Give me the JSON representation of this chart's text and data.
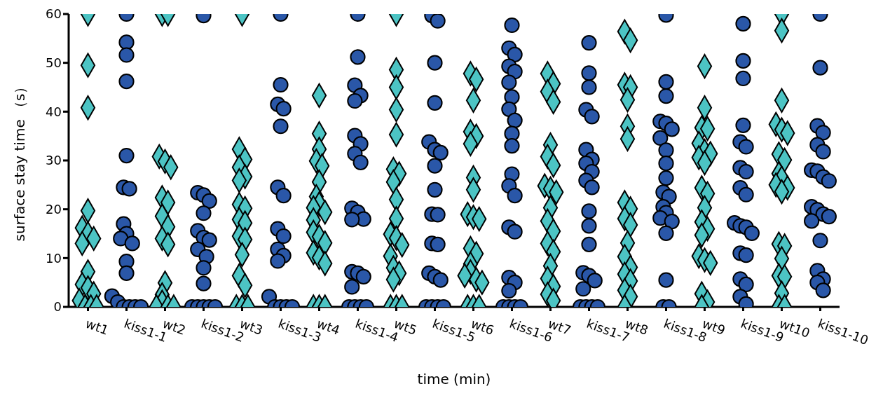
{
  "chart_data": {
    "type": "scatter",
    "xlabel": "time (min)",
    "ylabel": "surface stay time （s）",
    "categories": [
      "wt1",
      "kiss1-1",
      "wt2",
      "kiss1-2",
      "wt3",
      "kiss1-3",
      "wt4",
      "kiss1-4",
      "wt5",
      "kiss1-5",
      "wt6",
      "kiss1-6",
      "wt7",
      "kiss1-7",
      "wt8",
      "kiss1-8",
      "wt9",
      "kiss1-9",
      "wt10",
      "kiss1-10"
    ],
    "ylim": [
      0,
      60
    ],
    "yticks": [
      0,
      10,
      20,
      30,
      40,
      50,
      60
    ],
    "grid": false,
    "series": [
      {
        "color": "#4cc4c4",
        "marker": "diamond",
        "x": [
          "wt1",
          "wt1",
          "wt1",
          "wt1",
          "wt1",
          "wt1",
          "wt1",
          "wt1",
          "wt1",
          "wt1",
          "wt1",
          "wt1",
          "wt1",
          "wt1",
          "wt1",
          "wt1",
          "wt2",
          "wt2",
          "wt2",
          "wt2",
          "wt2",
          "wt2",
          "wt2",
          "wt2",
          "wt2",
          "wt2",
          "wt2",
          "wt2",
          "wt2",
          "wt2",
          "wt2",
          "wt2",
          "wt2",
          "wt3",
          "wt3",
          "wt3",
          "wt3",
          "wt3",
          "wt3",
          "wt3",
          "wt3",
          "wt3",
          "wt3",
          "wt3",
          "wt3",
          "wt3",
          "wt3",
          "wt3",
          "wt3",
          "wt3",
          "wt3",
          "wt4",
          "wt4",
          "wt4",
          "wt4",
          "wt4",
          "wt4",
          "wt4",
          "wt4",
          "wt4",
          "wt4",
          "wt4",
          "wt4",
          "wt4",
          "wt4",
          "wt4",
          "wt4",
          "wt4",
          "wt4",
          "wt4",
          "wt4",
          "wt5",
          "wt5",
          "wt5",
          "wt5",
          "wt5",
          "wt5",
          "wt5",
          "wt5",
          "wt5",
          "wt5",
          "wt5",
          "wt5",
          "wt5",
          "wt5",
          "wt5",
          "wt5",
          "wt5",
          "wt5",
          "wt5",
          "wt5",
          "wt6",
          "wt6",
          "wt6",
          "wt6",
          "wt6",
          "wt6",
          "wt6",
          "wt6",
          "wt6",
          "wt6",
          "wt6",
          "wt6",
          "wt6",
          "wt6",
          "wt6",
          "wt6",
          "wt6",
          "wt6",
          "wt6",
          "wt6",
          "wt6",
          "wt7",
          "wt7",
          "wt7",
          "wt7",
          "wt7",
          "wt7",
          "wt7",
          "wt7",
          "wt7",
          "wt7",
          "wt7",
          "wt7",
          "wt7",
          "wt7",
          "wt7",
          "wt7",
          "wt7",
          "wt7",
          "wt7",
          "wt7",
          "wt8",
          "wt8",
          "wt8",
          "wt8",
          "wt8",
          "wt8",
          "wt8",
          "wt8",
          "wt8",
          "wt8",
          "wt8",
          "wt8",
          "wt8",
          "wt8",
          "wt8",
          "wt8",
          "wt8",
          "wt8",
          "wt8",
          "wt9",
          "wt9",
          "wt9",
          "wt9",
          "wt9",
          "wt9",
          "wt9",
          "wt9",
          "wt9",
          "wt9",
          "wt9",
          "wt9",
          "wt9",
          "wt9",
          "wt9",
          "wt9",
          "wt9",
          "wt9",
          "wt9",
          "wt9",
          "wt9",
          "wt10",
          "wt10",
          "wt10",
          "wt10",
          "wt10",
          "wt10",
          "wt10",
          "wt10",
          "wt10",
          "wt10",
          "wt10",
          "wt10",
          "wt10",
          "wt10",
          "wt10",
          "wt10",
          "wt10",
          "wt10",
          "wt10",
          "wt10",
          "wt10"
        ],
        "values": [
          60,
          49.5,
          40.8,
          19.7,
          16.2,
          15,
          14,
          13,
          7.2,
          4.6,
          3.9,
          2.7,
          1.3,
          0,
          0,
          0,
          60,
          60,
          30.8,
          29.8,
          28.6,
          22.4,
          21.4,
          18.6,
          16.4,
          14,
          12.8,
          4.9,
          2.5,
          1,
          0,
          0,
          0,
          60,
          32.3,
          30.2,
          28.6,
          26.7,
          25.9,
          21,
          20.2,
          17.9,
          17.2,
          14.5,
          13.8,
          10.7,
          6.4,
          4.4,
          0,
          0,
          0,
          43.3,
          35.5,
          32.3,
          29.9,
          28.9,
          25.6,
          22.6,
          21.1,
          20.3,
          19.4,
          17.8,
          15.3,
          14.4,
          13.1,
          11.1,
          10.1,
          8.9,
          0,
          0,
          0,
          60,
          48.6,
          45,
          40.4,
          35.3,
          28.2,
          27.3,
          25.6,
          22,
          18.1,
          14.9,
          14.1,
          12.7,
          10.4,
          8,
          6.9,
          5.6,
          0,
          0,
          0,
          47.8,
          46.6,
          42.3,
          35.9,
          35,
          33.4,
          26.5,
          24,
          19,
          18.4,
          18,
          12,
          10.9,
          8.8,
          7.2,
          6.4,
          5.6,
          5,
          0,
          0,
          0,
          47.8,
          45.7,
          44.1,
          42,
          33.2,
          30.8,
          29,
          24.8,
          24.2,
          23.5,
          20.3,
          17.6,
          15.5,
          13,
          11.3,
          8.4,
          5.8,
          4.2,
          2.6,
          1.3,
          56.4,
          54.6,
          45.5,
          45,
          42.4,
          37,
          34.4,
          21.4,
          20.1,
          18.1,
          16.8,
          13.1,
          10.3,
          8.1,
          6.7,
          5.3,
          3.4,
          2.1,
          0,
          49.3,
          40.8,
          36.7,
          36.5,
          33.5,
          31.9,
          31.4,
          30.6,
          29.5,
          24.4,
          23.2,
          20.3,
          17.4,
          16,
          14.7,
          10.4,
          9.6,
          9,
          2.7,
          1,
          0,
          60,
          56.6,
          42.3,
          37.4,
          36.3,
          35.6,
          31.3,
          30.1,
          27.3,
          26.4,
          25,
          24.4,
          23.6,
          12.9,
          12.5,
          9.9,
          6.4,
          6.2,
          2.8,
          0,
          0
        ]
      },
      {
        "color": "#2a57a8",
        "marker": "circle",
        "x": [
          "kiss1-1",
          "kiss1-1",
          "kiss1-1",
          "kiss1-1",
          "kiss1-1",
          "kiss1-1",
          "kiss1-1",
          "kiss1-1",
          "kiss1-1",
          "kiss1-1",
          "kiss1-1",
          "kiss1-1",
          "kiss1-1",
          "kiss1-1",
          "kiss1-1",
          "kiss1-1",
          "kiss1-1",
          "kiss1-1",
          "kiss1-1",
          "kiss1-2",
          "kiss1-2",
          "kiss1-2",
          "kiss1-2",
          "kiss1-2",
          "kiss1-2",
          "kiss1-2",
          "kiss1-2",
          "kiss1-2",
          "kiss1-2",
          "kiss1-2",
          "kiss1-2",
          "kiss1-2",
          "kiss1-2",
          "kiss1-2",
          "kiss1-2",
          "kiss1-2",
          "kiss1-3",
          "kiss1-3",
          "kiss1-3",
          "kiss1-3",
          "kiss1-3",
          "kiss1-3",
          "kiss1-3",
          "kiss1-3",
          "kiss1-3",
          "kiss1-3",
          "kiss1-3",
          "kiss1-3",
          "kiss1-3",
          "kiss1-3",
          "kiss1-3",
          "kiss1-3",
          "kiss1-3",
          "kiss1-4",
          "kiss1-4",
          "kiss1-4",
          "kiss1-4",
          "kiss1-4",
          "kiss1-4",
          "kiss1-4",
          "kiss1-4",
          "kiss1-4",
          "kiss1-4",
          "kiss1-4",
          "kiss1-4",
          "kiss1-4",
          "kiss1-4",
          "kiss1-4",
          "kiss1-4",
          "kiss1-4",
          "kiss1-4",
          "kiss1-4",
          "kiss1-4",
          "kiss1-4",
          "kiss1-5",
          "kiss1-5",
          "kiss1-5",
          "kiss1-5",
          "kiss1-5",
          "kiss1-5",
          "kiss1-5",
          "kiss1-5",
          "kiss1-5",
          "kiss1-5",
          "kiss1-5",
          "kiss1-5",
          "kiss1-5",
          "kiss1-5",
          "kiss1-5",
          "kiss1-5",
          "kiss1-5",
          "kiss1-5",
          "kiss1-5",
          "kiss1-5",
          "kiss1-6",
          "kiss1-6",
          "kiss1-6",
          "kiss1-6",
          "kiss1-6",
          "kiss1-6",
          "kiss1-6",
          "kiss1-6",
          "kiss1-6",
          "kiss1-6",
          "kiss1-6",
          "kiss1-6",
          "kiss1-6",
          "kiss1-6",
          "kiss1-6",
          "kiss1-6",
          "kiss1-6",
          "kiss1-6",
          "kiss1-6",
          "kiss1-6",
          "kiss1-6",
          "kiss1-6",
          "kiss1-6",
          "kiss1-7",
          "kiss1-7",
          "kiss1-7",
          "kiss1-7",
          "kiss1-7",
          "kiss1-7",
          "kiss1-7",
          "kiss1-7",
          "kiss1-7",
          "kiss1-7",
          "kiss1-7",
          "kiss1-7",
          "kiss1-7",
          "kiss1-7",
          "kiss1-7",
          "kiss1-7",
          "kiss1-7",
          "kiss1-7",
          "kiss1-7",
          "kiss1-7",
          "kiss1-7",
          "kiss1-7",
          "kiss1-8",
          "kiss1-8",
          "kiss1-8",
          "kiss1-8",
          "kiss1-8",
          "kiss1-8",
          "kiss1-8",
          "kiss1-8",
          "kiss1-8",
          "kiss1-8",
          "kiss1-8",
          "kiss1-8",
          "kiss1-8",
          "kiss1-8",
          "kiss1-8",
          "kiss1-8",
          "kiss1-8",
          "kiss1-8",
          "kiss1-8",
          "kiss1-8",
          "kiss1-9",
          "kiss1-9",
          "kiss1-9",
          "kiss1-9",
          "kiss1-9",
          "kiss1-9",
          "kiss1-9",
          "kiss1-9",
          "kiss1-9",
          "kiss1-9",
          "kiss1-9",
          "kiss1-9",
          "kiss1-9",
          "kiss1-9",
          "kiss1-9",
          "kiss1-9",
          "kiss1-9",
          "kiss1-9",
          "kiss1-9",
          "kiss1-9",
          "kiss1-10",
          "kiss1-10",
          "kiss1-10",
          "kiss1-10",
          "kiss1-10",
          "kiss1-10",
          "kiss1-10",
          "kiss1-10",
          "kiss1-10",
          "kiss1-10",
          "kiss1-10",
          "kiss1-10",
          "kiss1-10",
          "kiss1-10",
          "kiss1-10",
          "kiss1-10",
          "kiss1-10",
          "kiss1-10",
          "kiss1-10",
          "kiss1-10"
        ],
        "values": [
          60,
          54.2,
          51.6,
          46.2,
          31,
          24.5,
          24.2,
          17,
          15,
          14,
          13,
          9.3,
          6.9,
          2.2,
          1,
          0,
          0,
          0,
          0,
          59.7,
          23.4,
          22.9,
          21.7,
          19.2,
          15.6,
          14.2,
          13.7,
          11.8,
          10.3,
          8,
          4.8,
          0,
          0,
          0,
          0,
          0,
          60,
          45.5,
          41.5,
          40.6,
          37,
          24.5,
          22.8,
          16,
          14.5,
          11.8,
          10.5,
          9.4,
          2.1,
          0,
          0,
          0,
          0,
          60,
          51.2,
          45.4,
          43.3,
          42.2,
          35.1,
          33.4,
          31.4,
          29.6,
          20.2,
          19.4,
          18,
          17.9,
          7.2,
          6.9,
          6.2,
          4.1,
          0,
          0,
          0,
          0,
          59.7,
          58.6,
          50,
          41.8,
          33.8,
          32.2,
          31.6,
          28.9,
          24,
          19,
          18.9,
          13,
          12.8,
          6.9,
          6.2,
          5.5,
          0,
          0,
          0,
          0,
          57.7,
          53,
          51.7,
          49.3,
          48.2,
          46,
          43,
          40.5,
          38.2,
          35.5,
          33,
          27.2,
          24.8,
          22.8,
          16.3,
          15.4,
          6,
          5,
          3.3,
          0,
          0,
          0,
          0,
          54.1,
          47.9,
          45,
          40.4,
          39,
          32.2,
          30.2,
          29.4,
          27.7,
          25.9,
          24.5,
          19.6,
          16.6,
          12.8,
          7,
          6.4,
          5.4,
          3.7,
          0,
          0,
          0,
          0,
          59.8,
          46.1,
          43.2,
          38,
          37.6,
          36.4,
          34.6,
          32.1,
          29.4,
          26.4,
          23.5,
          22.6,
          20.5,
          19.3,
          18.2,
          17.5,
          15.1,
          5.5,
          0,
          0,
          58,
          50.4,
          46.8,
          37.2,
          33.8,
          32.8,
          28.5,
          27.7,
          24.4,
          23,
          17.2,
          16.6,
          16.3,
          15.1,
          11,
          10.6,
          5.7,
          4.6,
          2.1,
          0.6,
          60,
          49,
          37.1,
          35.7,
          33.2,
          31.8,
          28,
          27.8,
          26.6,
          25.8,
          20.5,
          19.9,
          19,
          18.5,
          17.6,
          13.6,
          7.4,
          5.7,
          5,
          3.4
        ]
      }
    ]
  }
}
